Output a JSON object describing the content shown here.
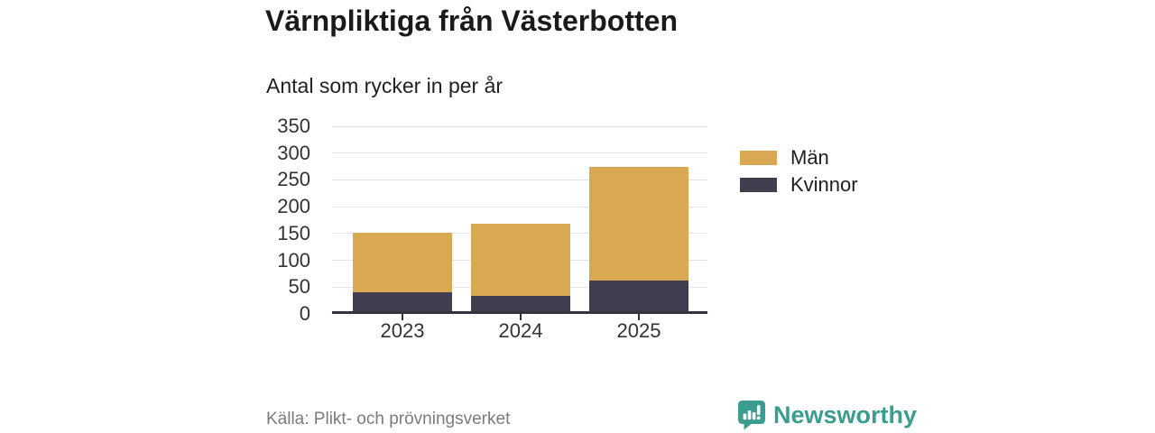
{
  "header": {
    "title": "Värnpliktiga från Västerbotten",
    "subtitle": "Antal som rycker in per år"
  },
  "chart_data": {
    "type": "bar",
    "stacked": true,
    "title": "Värnpliktiga från Västerbotten",
    "subtitle": "Antal som rycker in per år",
    "categories": [
      "2023",
      "2024",
      "2025"
    ],
    "series": [
      {
        "name": "Kvinnor",
        "values": [
          35,
          28,
          58
        ],
        "color": "#413e4f"
      },
      {
        "name": "Män",
        "values": [
          111,
          135,
          212
        ],
        "color": "#d8a952"
      }
    ],
    "totals": [
      146,
      163,
      270
    ],
    "xlabel": "",
    "ylabel": "",
    "ylim": [
      0,
      350
    ],
    "yticks": [
      0,
      50,
      100,
      150,
      200,
      250,
      300,
      350
    ],
    "grid": true,
    "legend_position": "right"
  },
  "legend": [
    {
      "label": "Män",
      "color": "#d8a952"
    },
    {
      "label": "Kvinnor",
      "color": "#413e4f"
    }
  ],
  "footer": {
    "source": "Källa: Plikt- och prövningsverket",
    "brand": "Newsworthy"
  },
  "colors": {
    "men": "#d8a952",
    "women": "#413e4f",
    "axis": "#35323f",
    "grid": "#e4e4e4",
    "title_text": "#1a1a1a",
    "tick_text": "#333333",
    "source_text": "#7b7b7b",
    "brand_teal": "#3a9d90",
    "background": "#ffffff"
  }
}
